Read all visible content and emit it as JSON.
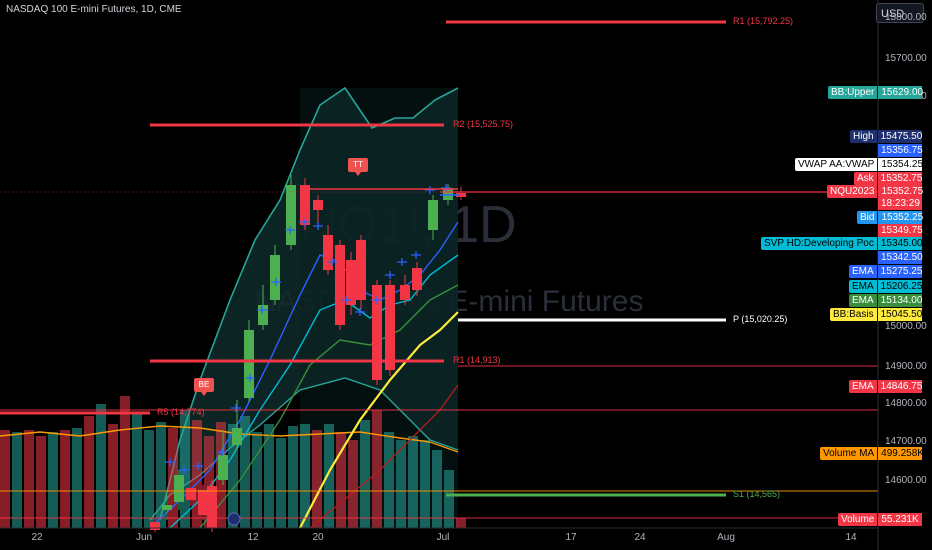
{
  "header": {
    "symbol_title": "NASDAQ 100 E-mini Futures, 1D, CME"
  },
  "currency_button": {
    "label": "USD"
  },
  "watermark": {
    "ticker": "NQ1!, 1D",
    "name": "NASDAQ 100 E-mini Futures"
  },
  "price_axis": {
    "ticks": [
      "15800.00",
      "15700.00",
      "15600.00",
      "15000.00",
      "14900.00",
      "14800.00",
      "14700.00",
      "14600.00"
    ]
  },
  "time_axis": {
    "ticks": [
      "22",
      "Jun",
      "12",
      "20",
      "Jul",
      "17",
      "24",
      "Aug",
      "14"
    ]
  },
  "pivot_levels": [
    {
      "label": "R1 (15,792.25)",
      "color": "#f23645"
    },
    {
      "label": "R2 (15,525.75)",
      "color": "#f23645"
    },
    {
      "label": "P (15,020.25)",
      "color": "#ffffff"
    },
    {
      "label": "R1 (14,913)",
      "color": "#f23645"
    },
    {
      "label": "R5 (14,774)",
      "color": "#f23645"
    },
    {
      "label": "S1 (14,565)",
      "color": "#4caf50"
    }
  ],
  "markers": [
    {
      "text": "TT",
      "color": "#ef5350"
    },
    {
      "text": "BE",
      "color": "#ef5350"
    }
  ],
  "scale_labels": [
    {
      "name": "BB:Upper",
      "value": "15629.00",
      "color": "#26a69a",
      "text_color": "#ffffff"
    },
    {
      "name": "High",
      "value": "15475.50",
      "color": "#1e2f6e",
      "text_color": "#ffffff"
    },
    {
      "name": "",
      "value": "15356.75",
      "color": "#2962ff",
      "text_color": "#ffffff"
    },
    {
      "name": "VWAP AA:VWAP",
      "value": "15354.25",
      "color": "#ffffff",
      "text_color": "#000000"
    },
    {
      "name": "Ask",
      "value": "15352.75",
      "color": "#f23645",
      "text_color": "#ffffff"
    },
    {
      "name": "NQU2023",
      "value": "15352.75",
      "color": "#f23645",
      "text_color": "#ffffff"
    },
    {
      "name": "",
      "value": "18:23:29",
      "color": "#f23645",
      "text_color": "#ffffff"
    },
    {
      "name": "Bid",
      "value": "15352.25",
      "color": "#2196f3",
      "text_color": "#ffffff"
    },
    {
      "name": "",
      "value": "15349.75",
      "color": "#f23645",
      "text_color": "#ffffff"
    },
    {
      "name": "SVP HD:Developing Poc",
      "value": "15345.00",
      "color": "#00bcd4",
      "text_color": "#000000"
    },
    {
      "name": "",
      "value": "15342.50",
      "color": "#2962ff",
      "text_color": "#ffffff"
    },
    {
      "name": "EMA",
      "value": "15275.25",
      "color": "#2962ff",
      "text_color": "#ffffff"
    },
    {
      "name": "EMA",
      "value": "15206.25",
      "color": "#00bcd4",
      "text_color": "#000000"
    },
    {
      "name": "EMA",
      "value": "15134.00",
      "color": "#388e3c",
      "text_color": "#ffffff"
    },
    {
      "name": "BB:Basis",
      "value": "15045.50",
      "color": "#ffeb3b",
      "text_color": "#000000"
    },
    {
      "name": "EMA",
      "value": "14846.75",
      "color": "#f23645",
      "text_color": "#ffffff"
    },
    {
      "name": "Volume MA",
      "value": "499.258K",
      "color": "#ff9800",
      "text_color": "#000000"
    },
    {
      "name": "Volume",
      "value": "55.231K",
      "color": "#f23645",
      "text_color": "#ffffff"
    }
  ],
  "colors": {
    "up": "#4caf50",
    "down": "#f23645",
    "bb": "#26a69a",
    "vol_up": "#26a69a",
    "vol_down": "#f23645",
    "background": "#000000"
  }
}
